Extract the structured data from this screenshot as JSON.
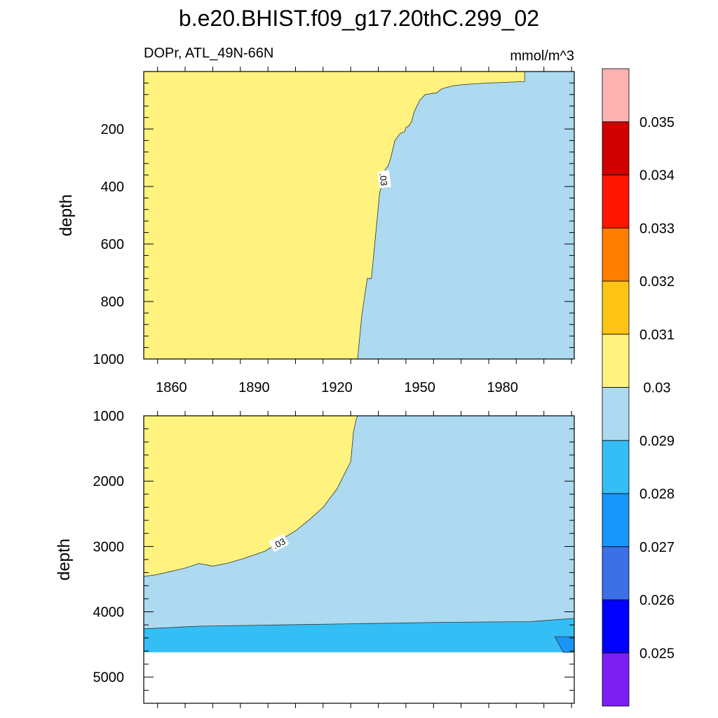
{
  "chart_data": [
    {
      "type": "contour",
      "title": "b.e20.BHIST.f09_g17.20thC.299_02",
      "left_string": "DOPr, ATL_49N-66N",
      "right_string": "mmol/m^3",
      "ylabel": "depth",
      "xlim": [
        1850,
        2006
      ],
      "ylim": [
        0,
        1000
      ],
      "y_reversed": true,
      "x_ticks": [
        1860,
        1890,
        1920,
        1950,
        1980
      ],
      "x_tick_labels": [
        "1860",
        "1890",
        "1920",
        "1950",
        "1980"
      ],
      "y_ticks": [
        200,
        400,
        600,
        800,
        1000
      ],
      "y_tick_labels": [
        "200",
        "400",
        "600",
        "800",
        "1000"
      ],
      "contour_labels": [
        {
          "text": ".03",
          "x": 1937,
          "y": 375
        }
      ],
      "contour_0_03": [
        [
          1927.5,
          1000
        ],
        [
          1929,
          850
        ],
        [
          1931,
          720
        ],
        [
          1932.5,
          720
        ],
        [
          1934.5,
          520
        ],
        [
          1935.5,
          420
        ],
        [
          1936.5,
          390
        ],
        [
          1937.5,
          340
        ],
        [
          1938.5,
          330
        ],
        [
          1939.5,
          300
        ],
        [
          1941,
          240
        ],
        [
          1942.5,
          220
        ],
        [
          1943,
          215
        ],
        [
          1944.5,
          210
        ],
        [
          1945,
          195
        ],
        [
          1946,
          190
        ],
        [
          1947,
          175
        ],
        [
          1948,
          140
        ],
        [
          1950,
          100
        ],
        [
          1952,
          80
        ],
        [
          1953.5,
          78
        ],
        [
          1955,
          75
        ],
        [
          1956,
          75
        ],
        [
          1958,
          60
        ],
        [
          1960,
          55
        ],
        [
          1962,
          50
        ],
        [
          1966,
          45
        ],
        [
          1975,
          40
        ],
        [
          1988,
          35
        ],
        [
          1988,
          0
        ]
      ],
      "fill_regions": [
        {
          "level": "0.03-0.031",
          "color": "#FFF27F",
          "where": "left of contour"
        },
        {
          "level": "0.029-0.03",
          "color": "#ADDAF0",
          "where": "right of contour"
        }
      ]
    },
    {
      "type": "contour",
      "ylabel": "depth",
      "xlim": [
        1850,
        2006
      ],
      "ylim": [
        1000,
        5400
      ],
      "y_reversed": true,
      "x_ticks": [
        1860,
        1890,
        1920,
        1950,
        1980
      ],
      "x_tick_labels": [],
      "y_ticks": [
        1000,
        2000,
        3000,
        4000,
        5000
      ],
      "y_tick_labels": [
        "1000",
        "2000",
        "3000",
        "4000",
        "5000"
      ],
      "contour_labels": [
        {
          "text": ".03",
          "x": 1899,
          "y": 2950
        }
      ],
      "contour_0_03": [
        [
          1850,
          3460
        ],
        [
          1855,
          3430
        ],
        [
          1860,
          3380
        ],
        [
          1865,
          3330
        ],
        [
          1870,
          3260
        ],
        [
          1875,
          3300
        ],
        [
          1880,
          3260
        ],
        [
          1885,
          3200
        ],
        [
          1890,
          3130
        ],
        [
          1894,
          3070
        ],
        [
          1897,
          2990
        ],
        [
          1900,
          2890
        ],
        [
          1905,
          2760
        ],
        [
          1910,
          2590
        ],
        [
          1915,
          2400
        ],
        [
          1920,
          2120
        ],
        [
          1925,
          1700
        ],
        [
          1926,
          1250
        ],
        [
          1927,
          1050
        ],
        [
          1927.5,
          1000
        ]
      ],
      "contour_0_029": [
        [
          1850,
          4260
        ],
        [
          1870,
          4220
        ],
        [
          1900,
          4200
        ],
        [
          1930,
          4180
        ],
        [
          1960,
          4160
        ],
        [
          1990,
          4150
        ],
        [
          2006,
          4100
        ]
      ],
      "contour_0_028": [
        [
          1999,
          4380
        ],
        [
          2006,
          4380
        ],
        [
          2006,
          4620
        ],
        [
          2002,
          4620
        ],
        [
          1999,
          4380
        ]
      ],
      "data_bottom_depth": 4620,
      "fill_regions": [
        {
          "level": "0.03-0.031",
          "color": "#FFF27F"
        },
        {
          "level": "0.029-0.03",
          "color": "#ADDAF0"
        },
        {
          "level": "0.028-0.029",
          "color": "#35BEF5"
        },
        {
          "level": "0.027-0.028",
          "color": "#1896FA"
        }
      ]
    }
  ],
  "colorbar": {
    "labels": [
      "0.035",
      "0.034",
      "0.033",
      "0.032",
      "0.031",
      "0.03",
      "0.029",
      "0.028",
      "0.027",
      "0.026",
      "0.025"
    ],
    "colors": [
      "#FFB2B2",
      "#CE0000",
      "#FF1400",
      "#FF7E00",
      "#FFC414",
      "#FFF27F",
      "#ADDAF0",
      "#35BEF5",
      "#1896FA",
      "#3C70E6",
      "#0000FF",
      "#7D1EF3"
    ]
  }
}
